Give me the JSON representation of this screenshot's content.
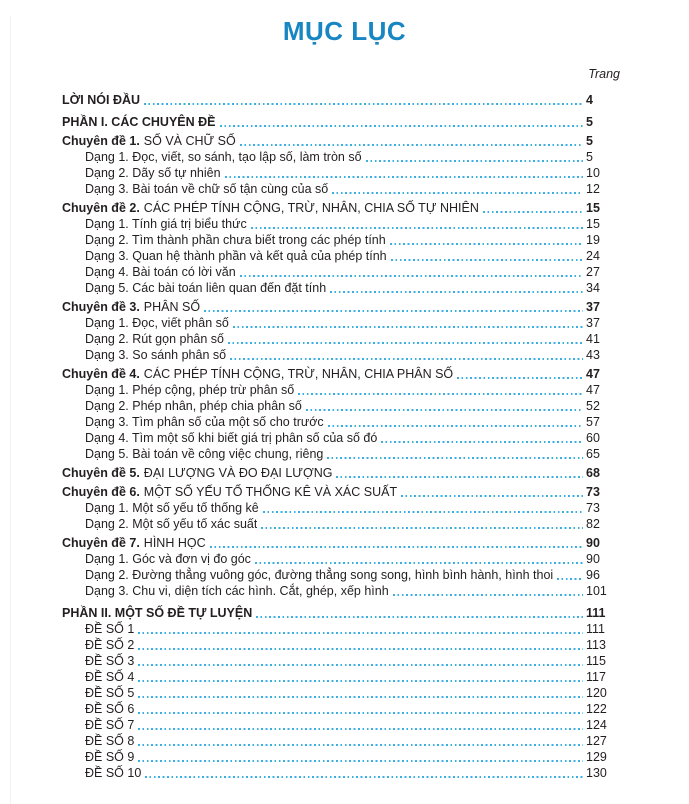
{
  "page": {
    "title": "MỤC LỤC",
    "page_column_header": "Trang"
  },
  "colors": {
    "title_blue": "#1786c3",
    "dot_leader_cyan": "#3aafe4",
    "body_text": "#231f20"
  },
  "toc": {
    "rows": [
      {
        "type": "intro",
        "prefix": "",
        "label": "LỜI NÓI ĐẦU",
        "page": "4"
      },
      {
        "type": "section",
        "prefix": "",
        "label": "PHẦN I. CÁC CHUYÊN ĐỀ",
        "page": "5"
      },
      {
        "type": "chapter",
        "prefix": "Chuyên đề 1.",
        "label": "SỐ VÀ CHỮ SỐ",
        "page": "5"
      },
      {
        "type": "item",
        "prefix": "",
        "label": "Dạng 1. Đọc, viết, so sánh, tạo lập số, làm tròn số",
        "page": "5"
      },
      {
        "type": "item",
        "prefix": "",
        "label": "Dạng 2. Dãy số tự nhiên",
        "page": "10"
      },
      {
        "type": "item",
        "prefix": "",
        "label": "Dạng 3. Bài toán về chữ số tận cùng của số",
        "page": "12"
      },
      {
        "type": "chapter",
        "prefix": "Chuyên đề 2.",
        "label": "CÁC PHÉP TÍNH CỘNG, TRỪ, NHÂN, CHIA SỐ TỰ NHIÊN",
        "page": "15"
      },
      {
        "type": "item",
        "prefix": "",
        "label": "Dạng 1. Tính giá trị biểu thức",
        "page": "15"
      },
      {
        "type": "item",
        "prefix": "",
        "label": "Dạng 2. Tìm thành phần chưa biết trong các phép tính",
        "page": "19"
      },
      {
        "type": "item",
        "prefix": "",
        "label": "Dạng 3. Quan hệ thành phần và kết quả của phép tính",
        "page": "24"
      },
      {
        "type": "item",
        "prefix": "",
        "label": "Dạng 4. Bài toán có lời văn",
        "page": "27"
      },
      {
        "type": "item",
        "prefix": "",
        "label": "Dạng 5. Các bài toán liên quan đến đặt tính",
        "page": "34"
      },
      {
        "type": "chapter",
        "prefix": "Chuyên đề 3.",
        "label": "PHÂN SỐ",
        "page": "37"
      },
      {
        "type": "item",
        "prefix": "",
        "label": "Dạng 1. Đọc, viết phân số",
        "page": "37"
      },
      {
        "type": "item",
        "prefix": "",
        "label": "Dạng 2. Rút gọn phân số",
        "page": "41"
      },
      {
        "type": "item",
        "prefix": "",
        "label": "Dạng 3. So sánh phân số",
        "page": "43"
      },
      {
        "type": "chapter",
        "prefix": "Chuyên đề 4.",
        "label": "CÁC PHÉP TÍNH CỘNG, TRỪ, NHÂN, CHIA PHÂN SỐ",
        "page": "47"
      },
      {
        "type": "item",
        "prefix": "",
        "label": "Dạng 1. Phép cộng, phép trừ phân số",
        "page": "47"
      },
      {
        "type": "item",
        "prefix": "",
        "label": "Dạng 2. Phép nhân, phép chia phân số",
        "page": "52"
      },
      {
        "type": "item",
        "prefix": "",
        "label": "Dạng 3. Tìm phân số của một số cho trước",
        "page": "57"
      },
      {
        "type": "item",
        "prefix": "",
        "label": "Dạng 4. Tìm một số khi biết giá trị phân số của số đó",
        "page": "60"
      },
      {
        "type": "item",
        "prefix": "",
        "label": "Dạng 5. Bài toán về công việc chung, riêng",
        "page": "65"
      },
      {
        "type": "chapter",
        "prefix": "Chuyên đề 5.",
        "label": "ĐẠI LƯỢNG VÀ ĐO ĐẠI LƯỢNG",
        "page": "68"
      },
      {
        "type": "chapter",
        "prefix": "Chuyên đề 6.",
        "label": "MỘT SỐ YẾU TỐ THỐNG KÊ VÀ XÁC SUẤT",
        "page": "73"
      },
      {
        "type": "item",
        "prefix": "",
        "label": "Dạng 1. Một số yếu tố thống kê",
        "page": "73"
      },
      {
        "type": "item",
        "prefix": "",
        "label": "Dạng 2. Một số yếu tố xác suất",
        "page": "82"
      },
      {
        "type": "chapter",
        "prefix": "Chuyên đề 7.",
        "label": "HÌNH HỌC",
        "page": "90"
      },
      {
        "type": "item",
        "prefix": "",
        "label": "Dạng 1. Góc và đơn vị đo góc",
        "page": "90"
      },
      {
        "type": "item",
        "prefix": "",
        "label": "Dạng 2. Đường thẳng vuông góc, đường thẳng song song, hình bình hành, hình thoi",
        "page": "96"
      },
      {
        "type": "item",
        "prefix": "",
        "label": "Dạng 3. Chu vi, diện tích các hình. Cắt, ghép, xếp hình",
        "page": "101"
      },
      {
        "type": "section",
        "prefix": "",
        "label": "PHẦN II. MỘT SỐ ĐỀ TỰ LUYỆN",
        "page": "111"
      },
      {
        "type": "item",
        "prefix": "",
        "label": "ĐỀ SỐ 1",
        "page": "111"
      },
      {
        "type": "item",
        "prefix": "",
        "label": "ĐỀ SỐ 2",
        "page": "113"
      },
      {
        "type": "item",
        "prefix": "",
        "label": "ĐỀ SỐ 3",
        "page": "115"
      },
      {
        "type": "item",
        "prefix": "",
        "label": "ĐỀ SỐ 4",
        "page": "117"
      },
      {
        "type": "item",
        "prefix": "",
        "label": "ĐỀ SỐ 5",
        "page": "120"
      },
      {
        "type": "item",
        "prefix": "",
        "label": "ĐỀ SỐ 6",
        "page": "122"
      },
      {
        "type": "item",
        "prefix": "",
        "label": "ĐỀ SỐ 7",
        "page": "124"
      },
      {
        "type": "item",
        "prefix": "",
        "label": "ĐỀ SỐ 8",
        "page": "127"
      },
      {
        "type": "item",
        "prefix": "",
        "label": "ĐỀ SỐ 9",
        "page": "129"
      },
      {
        "type": "item",
        "prefix": "",
        "label": "ĐỀ SỐ 10",
        "page": "130"
      }
    ]
  }
}
